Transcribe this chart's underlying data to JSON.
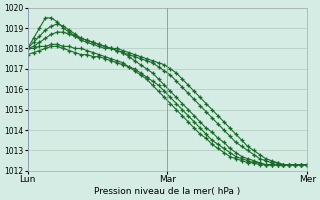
{
  "title": "",
  "xlabel": "Pression niveau de la mer( hPa )",
  "ylim": [
    1012,
    1020
  ],
  "yticks": [
    1012,
    1013,
    1014,
    1015,
    1016,
    1017,
    1018,
    1019,
    1020
  ],
  "bg_color": "#d4ece4",
  "grid_color": "#b0ccbb",
  "line_color": "#1a6b2a",
  "xtick_labels": [
    "Lun",
    "Mar",
    "Mer"
  ],
  "xtick_positions": [
    0,
    24,
    48
  ],
  "series": [
    [
      1018.0,
      1018.5,
      1019.0,
      1019.5,
      1019.5,
      1019.3,
      1019.0,
      1018.8,
      1018.6,
      1018.4,
      1018.3,
      1018.2,
      1018.1,
      1018.0,
      1018.0,
      1018.0,
      1017.9,
      1017.8,
      1017.7,
      1017.6,
      1017.5,
      1017.4,
      1017.3,
      1017.2,
      1017.0,
      1016.8,
      1016.5,
      1016.2,
      1015.9,
      1015.6,
      1015.3,
      1015.0,
      1014.7,
      1014.4,
      1014.1,
      1013.8,
      1013.5,
      1013.2,
      1013.0,
      1012.8,
      1012.6,
      1012.5,
      1012.4,
      1012.3,
      1012.3,
      1012.3,
      1012.3,
      1012.3
    ],
    [
      1018.0,
      1018.3,
      1018.6,
      1018.9,
      1019.1,
      1019.2,
      1019.1,
      1018.9,
      1018.7,
      1018.5,
      1018.4,
      1018.3,
      1018.2,
      1018.1,
      1018.0,
      1017.9,
      1017.8,
      1017.7,
      1017.6,
      1017.5,
      1017.4,
      1017.3,
      1017.1,
      1016.9,
      1016.7,
      1016.4,
      1016.1,
      1015.8,
      1015.5,
      1015.2,
      1014.9,
      1014.6,
      1014.3,
      1014.0,
      1013.7,
      1013.4,
      1013.2,
      1013.0,
      1012.8,
      1012.6,
      1012.5,
      1012.4,
      1012.4,
      1012.3,
      1012.3,
      1012.3,
      1012.3,
      1012.3
    ],
    [
      1017.7,
      1017.8,
      1017.9,
      1018.0,
      1018.1,
      1018.1,
      1018.0,
      1017.9,
      1017.8,
      1017.7,
      1017.7,
      1017.6,
      1017.6,
      1017.5,
      1017.4,
      1017.3,
      1017.2,
      1017.1,
      1017.0,
      1016.8,
      1016.6,
      1016.4,
      1016.2,
      1015.9,
      1015.6,
      1015.3,
      1015.0,
      1014.7,
      1014.4,
      1014.1,
      1013.8,
      1013.5,
      1013.3,
      1013.1,
      1012.9,
      1012.7,
      1012.6,
      1012.5,
      1012.4,
      1012.4,
      1012.3,
      1012.3,
      1012.3,
      1012.3,
      1012.3,
      1012.3,
      1012.3,
      1012.3
    ],
    [
      1018.0,
      1018.0,
      1018.1,
      1018.1,
      1018.2,
      1018.2,
      1018.1,
      1018.1,
      1018.0,
      1018.0,
      1017.9,
      1017.8,
      1017.7,
      1017.6,
      1017.5,
      1017.4,
      1017.3,
      1017.1,
      1016.9,
      1016.7,
      1016.5,
      1016.2,
      1015.9,
      1015.6,
      1015.3,
      1015.0,
      1014.7,
      1014.4,
      1014.1,
      1013.8,
      1013.6,
      1013.3,
      1013.1,
      1012.9,
      1012.7,
      1012.6,
      1012.5,
      1012.4,
      1012.4,
      1012.3,
      1012.3,
      1012.3,
      1012.3,
      1012.3,
      1012.3,
      1012.3,
      1012.3,
      1012.3
    ],
    [
      1018.0,
      1018.1,
      1018.3,
      1018.5,
      1018.7,
      1018.8,
      1018.8,
      1018.7,
      1018.6,
      1018.5,
      1018.4,
      1018.3,
      1018.2,
      1018.1,
      1018.0,
      1017.9,
      1017.8,
      1017.6,
      1017.4,
      1017.2,
      1017.0,
      1016.8,
      1016.5,
      1016.2,
      1015.9,
      1015.6,
      1015.3,
      1015.0,
      1014.7,
      1014.4,
      1014.1,
      1013.9,
      1013.6,
      1013.4,
      1013.1,
      1012.9,
      1012.7,
      1012.6,
      1012.5,
      1012.4,
      1012.3,
      1012.3,
      1012.3,
      1012.3,
      1012.3,
      1012.3,
      1012.3,
      1012.3
    ]
  ],
  "marker": "+",
  "markersize": 3,
  "linewidth": 0.8,
  "n_points": 48,
  "figsize": [
    3.2,
    2.0
  ],
  "dpi": 100
}
